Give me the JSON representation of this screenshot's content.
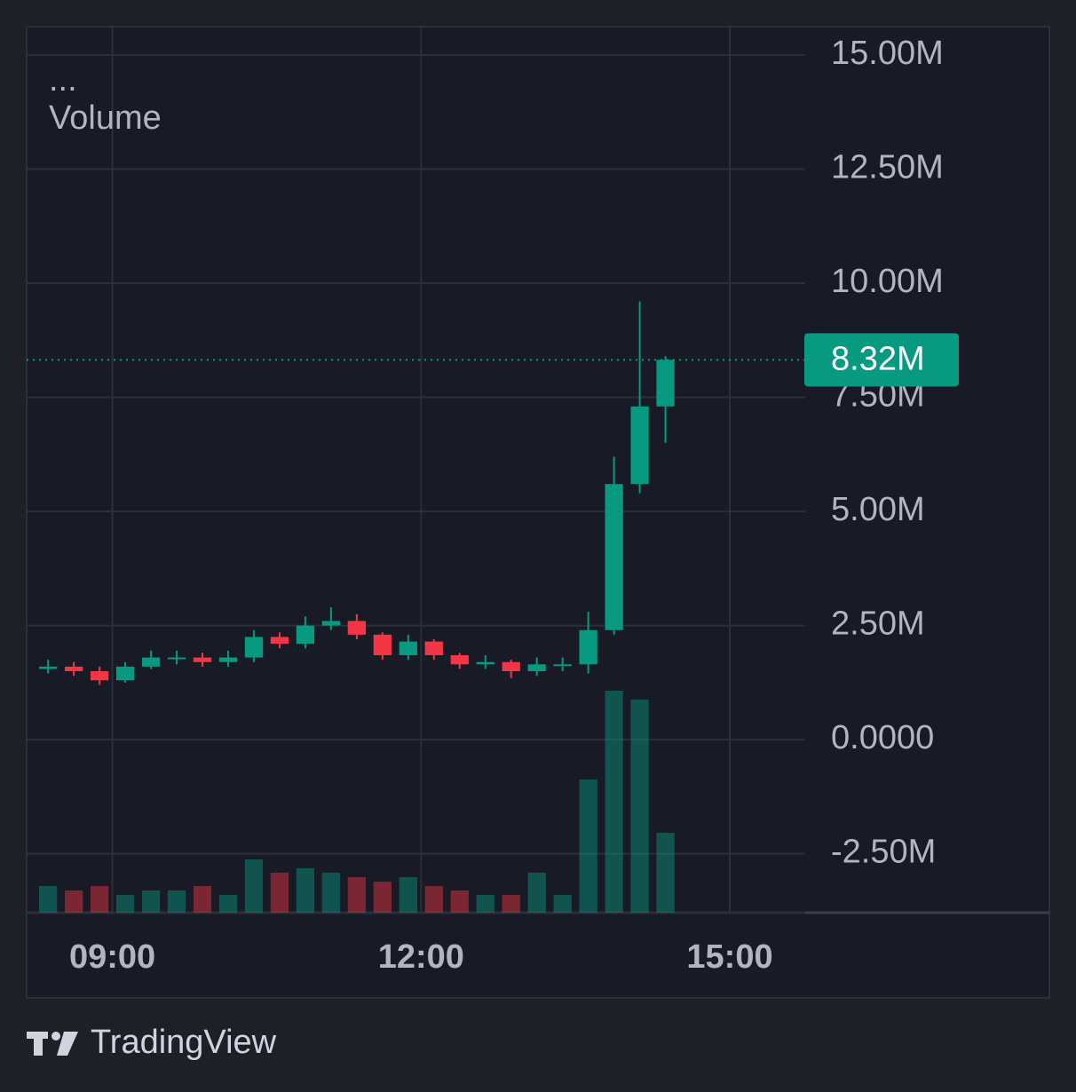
{
  "chart_data": {
    "type": "candlestick",
    "indicator_menu": "...",
    "indicator_label": "Volume",
    "x": [
      "08:15",
      "08:30",
      "08:45",
      "09:00",
      "09:15",
      "09:30",
      "09:45",
      "10:00",
      "10:15",
      "10:30",
      "10:45",
      "11:00",
      "11:15",
      "11:30",
      "11:45",
      "12:00",
      "12:15",
      "12:30",
      "12:45",
      "13:00",
      "13:15",
      "13:30",
      "13:45",
      "14:00",
      "14:15"
    ],
    "open": [
      1.55,
      1.6,
      1.5,
      1.3,
      1.6,
      1.8,
      1.8,
      1.7,
      1.8,
      2.25,
      2.1,
      2.5,
      2.6,
      2.3,
      1.85,
      2.15,
      1.85,
      1.65,
      1.7,
      1.5,
      1.65,
      1.65,
      2.4,
      5.6,
      7.3
    ],
    "high": [
      1.75,
      1.7,
      1.6,
      1.7,
      1.95,
      1.95,
      1.9,
      1.95,
      2.4,
      2.35,
      2.7,
      2.9,
      2.75,
      2.35,
      2.3,
      2.2,
      1.9,
      1.85,
      1.75,
      1.8,
      1.8,
      2.8,
      6.2,
      9.6,
      8.4
    ],
    "low": [
      1.45,
      1.4,
      1.2,
      1.25,
      1.55,
      1.65,
      1.6,
      1.6,
      1.7,
      2.0,
      2.0,
      2.4,
      2.2,
      1.75,
      1.75,
      1.75,
      1.55,
      1.55,
      1.35,
      1.4,
      1.5,
      1.45,
      2.3,
      5.4,
      6.5
    ],
    "close": [
      1.6,
      1.5,
      1.3,
      1.6,
      1.8,
      1.8,
      1.7,
      1.8,
      2.25,
      2.1,
      2.5,
      2.6,
      2.3,
      1.85,
      2.15,
      1.85,
      1.65,
      1.7,
      1.5,
      1.65,
      1.65,
      2.4,
      5.6,
      7.3,
      8.32
    ],
    "volume": {
      "values": [
        30,
        25,
        30,
        20,
        25,
        25,
        30,
        20,
        60,
        45,
        50,
        45,
        40,
        35,
        40,
        30,
        25,
        20,
        20,
        45,
        20,
        150,
        250,
        240,
        90
      ],
      "ylim": [
        0,
        300
      ]
    },
    "up_color": "#089981",
    "down_color": "#f23645",
    "last_price": {
      "value": 8.32,
      "value_label": "8.32M"
    },
    "xlim": [
      "08:10",
      "15:44"
    ],
    "xticks": [
      "09:00",
      "12:00",
      "15:00"
    ],
    "ylim": [
      -3.79,
      15.62
    ],
    "yticks": [
      {
        "value": 15,
        "label": "15.00M"
      },
      {
        "value": 12.5,
        "label": "12.50M"
      },
      {
        "value": 10,
        "label": "10.00M"
      },
      {
        "value": 7.5,
        "label": "7.50M"
      },
      {
        "value": 5,
        "label": "5.00M"
      },
      {
        "value": 2.5,
        "label": "2.50M"
      },
      {
        "value": 0,
        "label": "0.0000"
      },
      {
        "value": -2.5,
        "label": "-2.50M"
      }
    ],
    "grid": true
  },
  "footer": {
    "brand": "TradingView"
  }
}
